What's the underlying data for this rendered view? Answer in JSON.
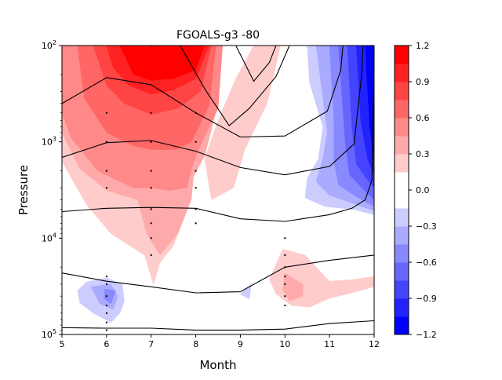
{
  "chart_data": {
    "type": "contourf",
    "title": "FGOALS-g3 -80",
    "xlabel": "Month",
    "ylabel": "Pressure",
    "xlim": [
      5,
      12
    ],
    "ylim": [
      100000,
      100
    ],
    "yscale": "log",
    "xticks": [
      "5",
      "6",
      "7",
      "8",
      "9",
      "10",
      "11",
      "12"
    ],
    "ytick_labels": [
      {
        "value": 100,
        "base": "10",
        "exp": "2"
      },
      {
        "value": 1000,
        "base": "10",
        "exp": "3"
      },
      {
        "value": 10000,
        "base": "10",
        "exp": "4"
      },
      {
        "value": 100000,
        "base": "10",
        "exp": "5"
      }
    ],
    "colorbar": {
      "ticks": [
        "1.2",
        "0.9",
        "0.6",
        "0.3",
        "0.0",
        "−0.3",
        "−0.6",
        "−0.9",
        "−1.2"
      ],
      "levels": [
        -1.2,
        -1.05,
        -0.9,
        -0.75,
        -0.6,
        -0.45,
        -0.3,
        -0.15,
        0.15,
        0.3,
        0.45,
        0.6,
        0.75,
        0.9,
        1.05,
        1.2
      ],
      "colors": [
        "#0000ff",
        "#2222ff",
        "#4444ff",
        "#6666ff",
        "#8888ff",
        "#aaaaff",
        "#ccccff",
        "#ffffff",
        "#ffcccc",
        "#ffaaaa",
        "#ff8888",
        "#ff6666",
        "#ff4444",
        "#ff2222",
        "#ff0000"
      ]
    },
    "fields": {
      "positive": [
        {
          "min": 0.15,
          "polygons": [
            [
              [
                5,
                100
              ],
              [
                8.2,
                100
              ],
              [
                8.2,
                800
              ],
              [
                7.85,
                3000
              ],
              [
                7.8,
                5000
              ],
              [
                7.5,
                12000
              ],
              [
                7.2,
                18000
              ],
              [
                7.05,
                30000
              ],
              [
                6.85,
                15000
              ],
              [
                6.1,
                9000
              ],
              [
                5.55,
                4500
              ],
              [
                5,
                1600
              ]
            ],
            [
              [
                9.3,
                100
              ],
              [
                9.9,
                100
              ],
              [
                9.6,
                400
              ],
              [
                9.1,
                1200
              ],
              [
                8.85,
                3000
              ],
              [
                8.35,
                4000
              ],
              [
                8.2,
                1500
              ],
              [
                8.5,
                600
              ],
              [
                8.9,
                220
              ]
            ],
            [
              [
                9.65,
                27000
              ],
              [
                9.95,
                13000
              ],
              [
                10.45,
                15000
              ],
              [
                11.0,
                28000
              ],
              [
                11.5,
                27000
              ],
              [
                12,
                25000
              ],
              [
                12,
                32000
              ],
              [
                11.5,
                37000
              ],
              [
                11.0,
                42000
              ],
              [
                10.55,
                52000
              ],
              [
                10.15,
                50000
              ],
              [
                9.8,
                38000
              ]
            ]
          ]
        },
        {
          "min": 0.3,
          "polygons": [
            [
              [
                5,
                100
              ],
              [
                8.55,
                100
              ],
              [
                8.5,
                400
              ],
              [
                8.2,
                1400
              ],
              [
                7.95,
                2300
              ],
              [
                7.9,
                4000
              ],
              [
                7.6,
                9000
              ],
              [
                7.2,
                15000
              ],
              [
                6.9,
                9000
              ],
              [
                6.7,
                4000
              ],
              [
                6.0,
                3200
              ],
              [
                5.4,
                1900
              ],
              [
                5,
                800
              ]
            ],
            [
              [
                10.0,
                23000
              ],
              [
                10.4,
                30000
              ],
              [
                10.4,
                40000
              ],
              [
                10.1,
                45000
              ],
              [
                9.95,
                34000
              ]
            ]
          ]
        },
        {
          "min": 0.45,
          "polygons": [
            [
              [
                5,
                100
              ],
              [
                8.6,
                100
              ],
              [
                8.5,
                450
              ],
              [
                8.1,
                1100
              ],
              [
                7.9,
                1900
              ],
              [
                7.8,
                3000
              ],
              [
                7.4,
                3200
              ],
              [
                7.0,
                3000
              ],
              [
                6.6,
                3000
              ],
              [
                5.8,
                2000
              ],
              [
                5.2,
                900
              ],
              [
                5,
                500
              ]
            ]
          ]
        },
        {
          "min": 0.6,
          "polygons": [
            [
              [
                5.35,
                100
              ],
              [
                8.45,
                100
              ],
              [
                8.3,
                420
              ],
              [
                7.9,
                1000
              ],
              [
                7.55,
                1200
              ],
              [
                7.0,
                1200
              ],
              [
                6.6,
                1100
              ],
              [
                6.0,
                800
              ],
              [
                5.5,
                350
              ]
            ]
          ]
        },
        {
          "min": 0.75,
          "polygons": [
            [
              [
                5.7,
                100
              ],
              [
                8.35,
                100
              ],
              [
                8.1,
                300
              ],
              [
                7.6,
                450
              ],
              [
                7.0,
                520
              ],
              [
                6.4,
                400
              ],
              [
                6.0,
                260
              ]
            ]
          ]
        },
        {
          "min": 0.9,
          "polygons": [
            [
              [
                6.0,
                100
              ],
              [
                8.3,
                100
              ],
              [
                8.0,
                220
              ],
              [
                7.5,
                290
              ],
              [
                7.0,
                320
              ],
              [
                6.5,
                260
              ],
              [
                6.15,
                170
              ]
            ]
          ]
        },
        {
          "min": 1.05,
          "polygons": [
            [
              [
                6.3,
                100
              ],
              [
                8.2,
                100
              ],
              [
                8.0,
                180
              ],
              [
                7.5,
                220
              ],
              [
                7.0,
                230
              ],
              [
                6.6,
                200
              ]
            ]
          ]
        }
      ],
      "negative": [
        {
          "max": -0.15,
          "polygons": [
            [
              [
                10.5,
                100
              ],
              [
                12,
                100
              ],
              [
                12,
                5700
              ],
              [
                11.5,
                5000
              ],
              [
                10.9,
                4700
              ],
              [
                10.45,
                3800
              ],
              [
                10.5,
                2400
              ],
              [
                10.75,
                1500
              ],
              [
                10.85,
                700
              ],
              [
                10.55,
                240
              ]
            ],
            [
              [
                5.35,
                35000
              ],
              [
                5.55,
                28500
              ],
              [
                6.0,
                26000
              ],
              [
                6.35,
                30000
              ],
              [
                6.4,
                45000
              ],
              [
                6.3,
                60000
              ],
              [
                6.1,
                75000
              ],
              [
                5.7,
                60000
              ],
              [
                5.4,
                47000
              ]
            ],
            [
              [
                9.0,
                38000
              ],
              [
                9.25,
                29500
              ],
              [
                9.2,
                43000
              ]
            ]
          ]
        },
        {
          "max": -0.3,
          "polygons": [
            [
              [
                10.7,
                100
              ],
              [
                12,
                100
              ],
              [
                12,
                5200
              ],
              [
                11.5,
                4300
              ],
              [
                11.0,
                3600
              ],
              [
                10.7,
                2600
              ],
              [
                10.85,
                1500
              ],
              [
                10.95,
                800
              ]
            ],
            [
              [
                5.65,
                32000
              ],
              [
                6.1,
                30000
              ],
              [
                6.25,
                40000
              ],
              [
                6.15,
                55000
              ],
              [
                5.85,
                48000
              ]
            ]
          ]
        },
        {
          "max": -0.45,
          "polygons": [
            [
              [
                11.0,
                100
              ],
              [
                12,
                100
              ],
              [
                12,
                4700
              ],
              [
                11.6,
                3700
              ],
              [
                11.2,
                2800
              ],
              [
                11.1,
                1600
              ],
              [
                11.1,
                600
              ]
            ],
            [
              [
                5.95,
                34000
              ],
              [
                6.2,
                35000
              ],
              [
                6.1,
                48000
              ],
              [
                5.95,
                43000
              ]
            ]
          ]
        },
        {
          "max": -0.6,
          "polygons": [
            [
              [
                11.2,
                100
              ],
              [
                12,
                100
              ],
              [
                12,
                4000
              ],
              [
                11.75,
                3100
              ],
              [
                11.45,
                2200
              ],
              [
                11.35,
                1000
              ]
            ]
          ]
        },
        {
          "max": -0.75,
          "polygons": [
            [
              [
                11.4,
                100
              ],
              [
                12,
                100
              ],
              [
                12,
                3000
              ],
              [
                11.85,
                2500
              ],
              [
                11.6,
                1700
              ],
              [
                11.5,
                700
              ]
            ]
          ]
        },
        {
          "max": -0.9,
          "polygons": [
            [
              [
                11.6,
                100
              ],
              [
                12,
                100
              ],
              [
                12,
                2200
              ],
              [
                11.85,
                1500
              ],
              [
                11.7,
                600
              ]
            ]
          ]
        },
        {
          "max": -1.05,
          "polygons": [
            [
              [
                11.8,
                100
              ],
              [
                12,
                100
              ],
              [
                12,
                1500
              ],
              [
                11.9,
                700
              ]
            ]
          ]
        }
      ]
    },
    "contour_lines": [
      [
        [
          5,
          85000
        ],
        [
          6,
          86000
        ],
        [
          7,
          86000
        ],
        [
          8,
          90000
        ],
        [
          9,
          90000
        ],
        [
          10,
          88000
        ],
        [
          11,
          77000
        ],
        [
          12,
          72000
        ]
      ],
      [
        [
          5,
          23000
        ],
        [
          6,
          28000
        ],
        [
          7,
          32000
        ],
        [
          8,
          37000
        ],
        [
          9,
          36000
        ],
        [
          10,
          20000
        ],
        [
          11,
          17000
        ],
        [
          12,
          15000
        ]
      ],
      [
        [
          5,
          5300
        ],
        [
          6,
          4900
        ],
        [
          7,
          4800
        ],
        [
          8,
          4900
        ],
        [
          9,
          6300
        ],
        [
          10,
          6700
        ],
        [
          11,
          5700
        ],
        [
          11.5,
          4900
        ],
        [
          11.8,
          4000
        ],
        [
          11.95,
          2500
        ],
        [
          12,
          100
        ]
      ],
      [
        [
          5,
          1450
        ],
        [
          6,
          1020
        ],
        [
          7,
          970
        ],
        [
          8,
          1250
        ],
        [
          9,
          1850
        ],
        [
          10,
          2200
        ],
        [
          11,
          1800
        ],
        [
          11.55,
          1050
        ],
        [
          11.72,
          200
        ],
        [
          11.75,
          100
        ]
      ],
      [
        [
          5,
          400
        ],
        [
          6,
          215
        ],
        [
          7,
          255
        ],
        [
          8,
          500
        ],
        [
          9,
          890
        ],
        [
          10,
          870
        ],
        [
          10.95,
          480
        ],
        [
          11.25,
          180
        ],
        [
          11.3,
          100
        ]
      ],
      [
        [
          7.65,
          100
        ],
        [
          8.2,
          280
        ],
        [
          8.75,
          680
        ],
        [
          9.2,
          450
        ],
        [
          9.8,
          210
        ],
        [
          10.1,
          100
        ]
      ],
      [
        [
          8.9,
          100
        ],
        [
          9.3,
          235
        ],
        [
          9.65,
          150
        ],
        [
          9.8,
          100
        ]
      ]
    ],
    "stipple_columns": [
      {
        "x": 6,
        "pressures": [
          500,
          1000,
          2000,
          3000,
          25000,
          30000,
          40000,
          50000,
          60000,
          75000,
          90000
        ]
      },
      {
        "x": 7,
        "pressures": [
          100,
          500,
          1000,
          2000,
          3000,
          5000,
          7000,
          10000,
          15000
        ]
      },
      {
        "x": 8,
        "pressures": [
          500,
          1000,
          2000,
          3000,
          5000,
          7000
        ]
      },
      {
        "x": 10,
        "pressures": [
          10000,
          15000,
          20000,
          25000,
          30000,
          40000,
          50000
        ]
      }
    ]
  }
}
